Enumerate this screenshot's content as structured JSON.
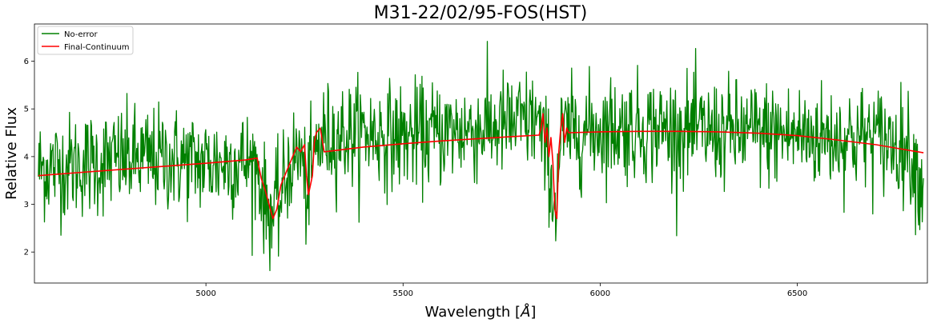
{
  "chart_data": {
    "type": "line",
    "title": "M31-22/02/95-FOS(HST)",
    "xlabel": "Wavelength [",
    "xlabel_unit": "Å",
    "xlabel_end": "]",
    "ylabel": "Relative Flux",
    "xlim": [
      4565,
      6830
    ],
    "ylim": [
      1.35,
      6.78
    ],
    "xticks": [
      5000,
      5500,
      6000,
      6500
    ],
    "yticks": [
      2,
      3,
      4,
      5,
      6
    ],
    "grid": false,
    "legend_position": "top-left",
    "series": [
      {
        "name": "No-error",
        "color": "#008000",
        "style": "noisy",
        "noise": 0.55,
        "x": [
          4575,
          4700,
          4800,
          4900,
          5000,
          5100,
          5130,
          5150,
          5170,
          5190,
          5210,
          5240,
          5255,
          5280,
          5300,
          5400,
          5500,
          5600,
          5700,
          5800,
          5840,
          5855,
          5870,
          5880,
          5890,
          5900,
          5920,
          6000,
          6100,
          6200,
          6300,
          6400,
          6500,
          6600,
          6700,
          6780,
          6800,
          6820
        ],
        "y": [
          3.75,
          3.85,
          3.95,
          3.95,
          3.85,
          3.9,
          3.8,
          3.0,
          2.8,
          3.1,
          3.8,
          4.1,
          3.2,
          4.2,
          4.4,
          4.5,
          4.4,
          4.5,
          4.6,
          4.7,
          4.8,
          4.2,
          4.0,
          3.0,
          3.2,
          4.4,
          4.5,
          4.6,
          4.6,
          4.55,
          4.5,
          4.5,
          4.45,
          4.4,
          4.4,
          4.2,
          3.8,
          3.3
        ]
      },
      {
        "name": "Final-Continuum",
        "color": "#ff0000",
        "style": "smooth",
        "x": [
          4575,
          4700,
          4900,
          5000,
          5100,
          5130,
          5140,
          5150,
          5160,
          5170,
          5180,
          5190,
          5200,
          5210,
          5220,
          5230,
          5240,
          5250,
          5255,
          5260,
          5270,
          5275,
          5280,
          5290,
          5300,
          5400,
          5500,
          5600,
          5700,
          5800,
          5845,
          5850,
          5855,
          5860,
          5865,
          5870,
          5875,
          5880,
          5885,
          5890,
          5895,
          5900,
          5905,
          5910,
          5915,
          5920,
          6000,
          6100,
          6200,
          6300,
          6400,
          6500,
          6600,
          6700,
          6820
        ],
        "y": [
          3.6,
          3.68,
          3.8,
          3.86,
          3.93,
          3.97,
          3.55,
          3.3,
          3.0,
          2.7,
          2.9,
          3.4,
          3.6,
          3.8,
          4.0,
          4.2,
          4.1,
          4.25,
          3.6,
          3.2,
          3.6,
          4.3,
          4.5,
          4.6,
          4.1,
          4.2,
          4.27,
          4.33,
          4.38,
          4.43,
          4.45,
          4.6,
          4.9,
          4.3,
          4.6,
          4.0,
          4.4,
          3.9,
          2.9,
          2.7,
          4.1,
          4.6,
          4.9,
          4.3,
          4.6,
          4.5,
          4.52,
          4.53,
          4.53,
          4.52,
          4.49,
          4.44,
          4.35,
          4.25,
          4.08
        ]
      }
    ]
  }
}
